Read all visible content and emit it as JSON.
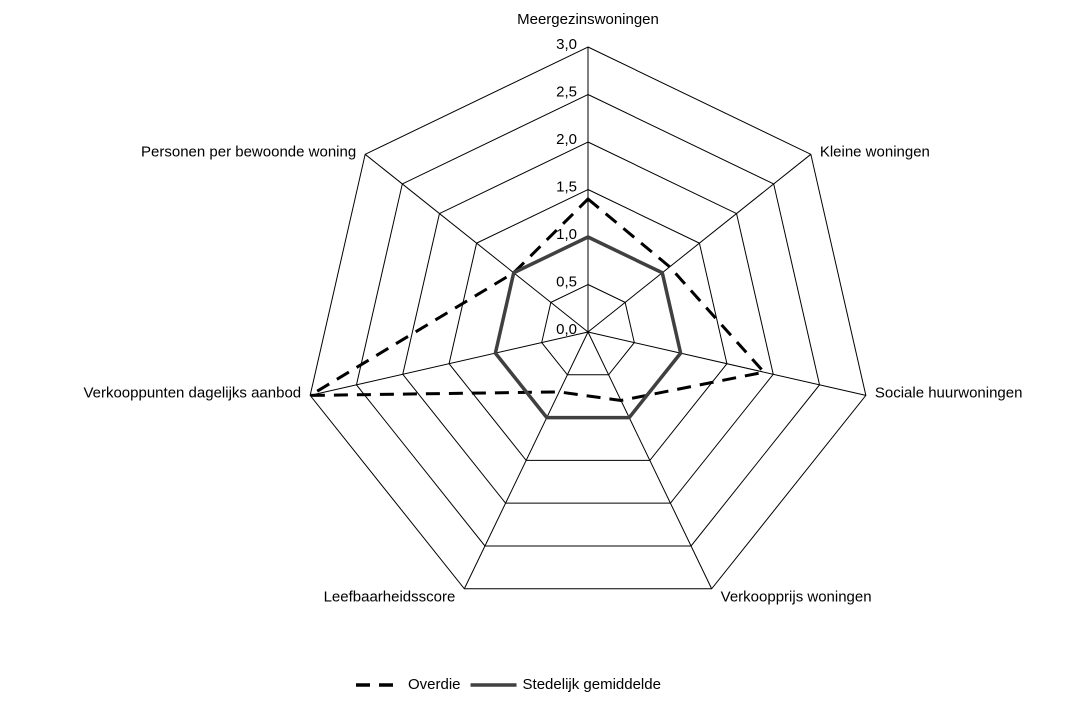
{
  "chart_data": {
    "type": "radar",
    "categories": [
      "Meergezinswoningen",
      "Kleine woningen",
      "Sociale huurwoningen",
      "Verkoopprijs woningen",
      "Leefbaarheidsscore",
      "Verkooppunten dagelijks aanbod",
      "Personen per bewoonde woning"
    ],
    "series": [
      {
        "name": "Overdie",
        "color": "#000000",
        "dash": true,
        "values": [
          1.4,
          1.1,
          1.9,
          0.8,
          0.7,
          3.0,
          1.0
        ]
      },
      {
        "name": "Stedelijk gemiddelde",
        "color": "#404040",
        "dash": false,
        "values": [
          1.0,
          1.0,
          1.0,
          1.0,
          1.0,
          1.0,
          1.0
        ]
      }
    ],
    "rlim": [
      0,
      3
    ],
    "rticks": [
      {
        "value": 0,
        "label": "0,0"
      },
      {
        "value": 0.5,
        "label": "0,5"
      },
      {
        "value": 1,
        "label": "1,0"
      },
      {
        "value": 1.5,
        "label": "1,5"
      },
      {
        "value": 2,
        "label": "2,0"
      },
      {
        "value": 2.5,
        "label": "2,5"
      },
      {
        "value": 3,
        "label": "3,0"
      }
    ],
    "grid": true,
    "legend": "bottom"
  }
}
